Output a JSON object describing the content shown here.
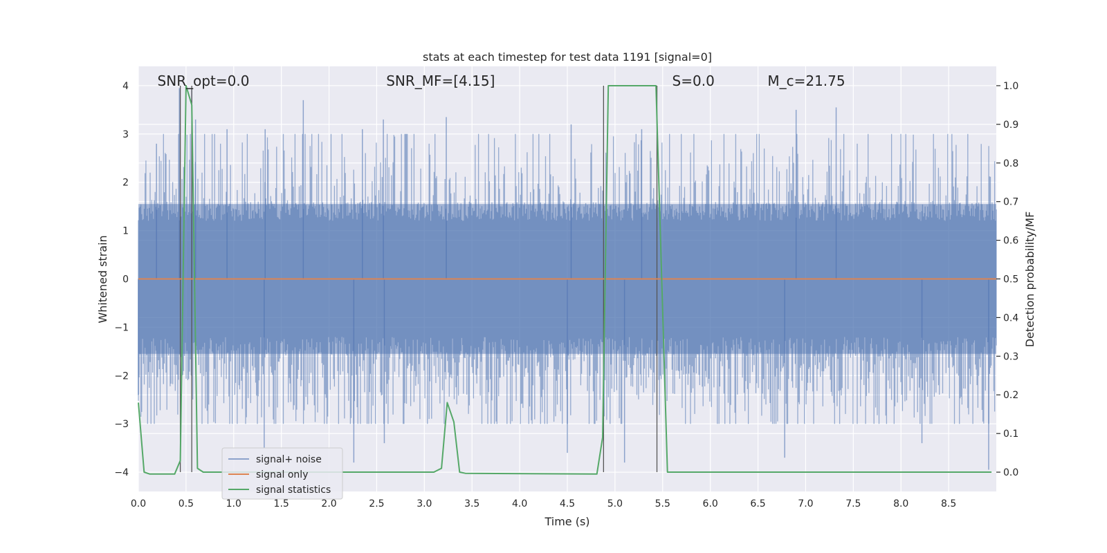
{
  "chart_data": {
    "type": "line",
    "title": "stats at each timestep for test data 1191 [signal=0]",
    "xlabel": "Time (s)",
    "ylabel_left": "Whitened strain",
    "ylabel_right": "Detection probability/MF",
    "xlim": [
      0.0,
      9.0
    ],
    "ylim_left": [
      -4.4,
      4.4
    ],
    "ylim_right": [
      -0.05,
      1.05
    ],
    "x_ticks": [
      0.0,
      0.5,
      1.0,
      1.5,
      2.0,
      2.5,
      3.0,
      3.5,
      4.0,
      4.5,
      5.0,
      5.5,
      6.0,
      6.5,
      7.0,
      7.5,
      8.0,
      8.5
    ],
    "x_tick_labels": [
      "0.0",
      "0.5",
      "1.0",
      "1.5",
      "2.0",
      "2.5",
      "3.0",
      "3.5",
      "4.0",
      "4.5",
      "5.0",
      "5.5",
      "6.0",
      "6.5",
      "7.0",
      "7.5",
      "8.0",
      "8.5"
    ],
    "y_left_ticks": [
      -4,
      -3,
      -2,
      -1,
      0,
      1,
      2,
      3,
      4
    ],
    "y_left_tick_labels": [
      "−4",
      "−3",
      "−2",
      "−1",
      "0",
      "1",
      "2",
      "3",
      "4"
    ],
    "y_right_ticks": [
      0.0,
      0.1,
      0.2,
      0.3,
      0.4,
      0.5,
      0.6,
      0.7,
      0.8,
      0.9,
      1.0
    ],
    "y_right_tick_labels": [
      "0.0",
      "0.1",
      "0.2",
      "0.3",
      "0.4",
      "0.5",
      "0.6",
      "0.7",
      "0.8",
      "0.9",
      "1.0"
    ],
    "grid": true,
    "legend_placement": "lower-left",
    "annotations": [
      {
        "text": "SNR_opt=0.0",
        "x": 0.2
      },
      {
        "text": "SNR_MF=[4.15]",
        "x": 2.6
      },
      {
        "text": "S=0.0",
        "x": 5.6
      },
      {
        "text": "M_c=21.75",
        "x": 6.6
      }
    ],
    "vertical_markers": [
      0.44,
      0.56,
      4.88,
      5.44
    ],
    "series": [
      {
        "name": "signal+ noise",
        "color": "#4c72b0",
        "axis": "left",
        "kind": "noise",
        "sample_rate_hz": 113.8,
        "band_sigma": 1.6,
        "extreme_peaks": [
          {
            "x": 0.19,
            "y": 2.8
          },
          {
            "x": 0.43,
            "y": 3.95
          },
          {
            "x": 0.56,
            "y": 3.95
          },
          {
            "x": 0.6,
            "y": 3.3
          },
          {
            "x": 0.93,
            "y": 3.1
          },
          {
            "x": 1.33,
            "y": 3.1
          },
          {
            "x": 1.73,
            "y": 3.7
          },
          {
            "x": 2.35,
            "y": 3.1
          },
          {
            "x": 2.57,
            "y": 3.3
          },
          {
            "x": 3.23,
            "y": 3.35
          },
          {
            "x": 4.54,
            "y": 3.2
          },
          {
            "x": 5.28,
            "y": 3.1
          },
          {
            "x": 6.9,
            "y": 3.5
          },
          {
            "x": 7.32,
            "y": 3.55
          },
          {
            "x": 2.58,
            "y": -3.4
          },
          {
            "x": 1.32,
            "y": -3.5
          },
          {
            "x": 2.26,
            "y": -3.8
          },
          {
            "x": 4.5,
            "y": -3.6
          },
          {
            "x": 5.1,
            "y": -3.8
          },
          {
            "x": 6.78,
            "y": -3.7
          },
          {
            "x": 8.22,
            "y": -3.4
          },
          {
            "x": 8.92,
            "y": -3.95
          },
          {
            "x": 0.0,
            "y": -2.4
          }
        ]
      },
      {
        "name": "signal only",
        "color": "#dd8452",
        "axis": "left",
        "kind": "flat",
        "x": [
          0.0,
          9.0
        ],
        "y": [
          0.0,
          0.0
        ]
      },
      {
        "name": "signal statistics",
        "color": "#55a868",
        "axis": "right",
        "kind": "line",
        "x": [
          0.0,
          0.06,
          0.12,
          0.38,
          0.44,
          0.5,
          0.56,
          0.62,
          0.68,
          3.1,
          3.18,
          3.24,
          3.31,
          3.37,
          3.43,
          4.81,
          4.87,
          4.93,
          5.43,
          5.55,
          5.61,
          8.95
        ],
        "y": [
          0.18,
          0.0,
          -0.005,
          -0.005,
          0.03,
          1.0,
          0.95,
          0.01,
          0.0,
          0.0,
          0.01,
          0.18,
          0.13,
          0.0,
          -0.003,
          -0.005,
          0.09,
          1.0,
          1.0,
          0.0,
          0.0,
          0.0
        ]
      }
    ]
  }
}
